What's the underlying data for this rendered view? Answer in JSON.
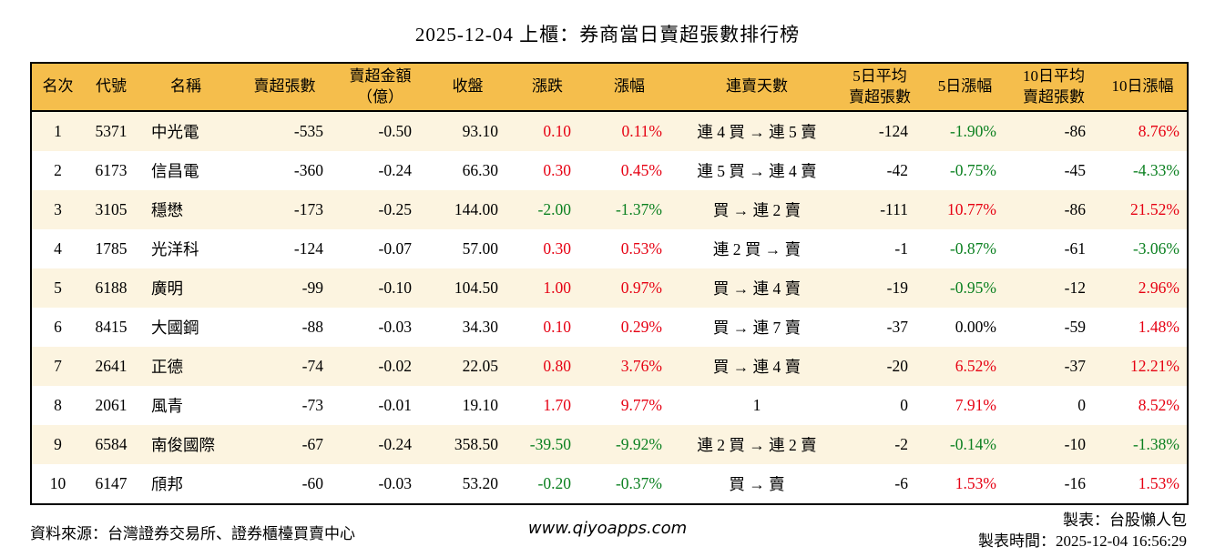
{
  "title": "2025-12-04 上櫃：券商當日賣超張數排行榜",
  "chart_data": {
    "type": "table",
    "title": "2025-12-04 上櫃：券商當日賣超張數排行榜",
    "columns": [
      {
        "key": "rank",
        "label_lines": [
          "名次"
        ]
      },
      {
        "key": "code",
        "label_lines": [
          "代號"
        ]
      },
      {
        "key": "name",
        "label_lines": [
          "名稱"
        ]
      },
      {
        "key": "sell_volume",
        "label_lines": [
          "賣超張數"
        ]
      },
      {
        "key": "sell_amount",
        "label_lines": [
          "賣超金額",
          "（億）"
        ]
      },
      {
        "key": "close",
        "label_lines": [
          "收盤"
        ]
      },
      {
        "key": "change",
        "label_lines": [
          "漲跌"
        ],
        "signed": true
      },
      {
        "key": "change_pct",
        "label_lines": [
          "漲幅"
        ],
        "signed": true
      },
      {
        "key": "streak",
        "label_lines": [
          "連賣天數"
        ]
      },
      {
        "key": "avg5_volume",
        "label_lines": [
          "5日平均",
          "賣超張數"
        ]
      },
      {
        "key": "pct5",
        "label_lines": [
          "5日漲幅"
        ],
        "signed": true
      },
      {
        "key": "avg10_volume",
        "label_lines": [
          "10日平均",
          "賣超張數"
        ]
      },
      {
        "key": "pct10",
        "label_lines": [
          "10日漲幅"
        ],
        "signed": true
      }
    ],
    "rows": [
      [
        "1",
        "5371",
        "中光電",
        "-535",
        "-0.50",
        "93.10",
        "0.10",
        "0.11%",
        "連 4 買 → 連 5 賣",
        "-124",
        "-1.90%",
        "-86",
        "8.76%"
      ],
      [
        "2",
        "6173",
        "信昌電",
        "-360",
        "-0.24",
        "66.30",
        "0.30",
        "0.45%",
        "連 5 買 → 連 4 賣",
        "-42",
        "-0.75%",
        "-45",
        "-4.33%"
      ],
      [
        "3",
        "3105",
        "穩懋",
        "-173",
        "-0.25",
        "144.00",
        "-2.00",
        "-1.37%",
        "買 → 連 2 賣",
        "-111",
        "10.77%",
        "-86",
        "21.52%"
      ],
      [
        "4",
        "1785",
        "光洋科",
        "-124",
        "-0.07",
        "57.00",
        "0.30",
        "0.53%",
        "連 2 買 → 賣",
        "-1",
        "-0.87%",
        "-61",
        "-3.06%"
      ],
      [
        "5",
        "6188",
        "廣明",
        "-99",
        "-0.10",
        "104.50",
        "1.00",
        "0.97%",
        "買 → 連 4 賣",
        "-19",
        "-0.95%",
        "-12",
        "2.96%"
      ],
      [
        "6",
        "8415",
        "大國鋼",
        "-88",
        "-0.03",
        "34.30",
        "0.10",
        "0.29%",
        "買 → 連 7 賣",
        "-37",
        "0.00%",
        "-59",
        "1.48%"
      ],
      [
        "7",
        "2641",
        "正德",
        "-74",
        "-0.02",
        "22.05",
        "0.80",
        "3.76%",
        "買 → 連 4 賣",
        "-20",
        "6.52%",
        "-37",
        "12.21%"
      ],
      [
        "8",
        "2061",
        "風青",
        "-73",
        "-0.01",
        "19.10",
        "1.70",
        "9.77%",
        "1",
        "0",
        "7.91%",
        "0",
        "8.52%"
      ],
      [
        "9",
        "6584",
        "南俊國際",
        "-67",
        "-0.24",
        "358.50",
        "-39.50",
        "-9.92%",
        "連 2 買 → 連 2 賣",
        "-2",
        "-0.14%",
        "-10",
        "-1.38%"
      ],
      [
        "10",
        "6147",
        "頎邦",
        "-60",
        "-0.03",
        "53.20",
        "-0.20",
        "-0.37%",
        "買 → 賣",
        "-6",
        "1.53%",
        "-16",
        "1.53%"
      ]
    ]
  },
  "footer": {
    "source": "資料來源：台灣證券交易所、證券櫃檯買賣中心",
    "website": "www.qiyoapps.com",
    "maker": "製表：台股懶人包",
    "made_at": "製表時間：2025-12-04 16:56:29"
  },
  "colors": {
    "header_bg": "#F5BE4C",
    "stripe_bg": "#FCF4E0",
    "up_red": "#E60012",
    "down_green": "#0B8020",
    "border": "#000000"
  }
}
